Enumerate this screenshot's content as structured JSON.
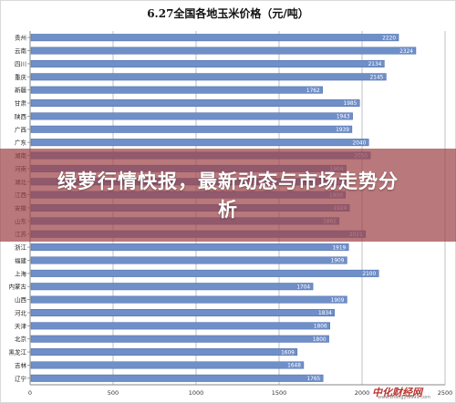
{
  "chart_data": {
    "type": "bar",
    "orientation": "horizontal",
    "title": "6.27全国各地玉米价格（元/吨）",
    "categories": [
      "贵州",
      "云南",
      "四川",
      "重庆",
      "新疆",
      "甘肃",
      "陕西",
      "广西",
      "广东",
      "湖南",
      "河南",
      "湖北",
      "江西",
      "安徽",
      "山东",
      "江苏",
      "浙江",
      "福建",
      "上海",
      "内蒙古",
      "山西",
      "河北",
      "天津",
      "北京",
      "黑龙江",
      "吉林",
      "辽宁"
    ],
    "values": [
      2220,
      2324,
      2134,
      2145,
      1762,
      1985,
      1943,
      1939,
      2040,
      2050,
      1904,
      1900,
      1900,
      1924,
      1862,
      2021,
      1919,
      1909,
      2100,
      1704,
      1909,
      1834,
      1806,
      1800,
      1609,
      1648,
      1765
    ],
    "xlim": [
      0,
      2500
    ],
    "xticks": [
      "0",
      "500",
      "1000",
      "1500",
      "2000",
      "2500"
    ],
    "grid": true,
    "colors": {
      "bar": "#6f8fc8",
      "bar_edge": "#4a6aa8",
      "grid": "#bfbfbf"
    }
  },
  "overlay": {
    "text_line1": "绿萝行情快报，最新动态与市场走势分",
    "text_line2": "析"
  },
  "watermark": {
    "logo": "中化财经网",
    "url": "www.zhongyi9999.com"
  }
}
